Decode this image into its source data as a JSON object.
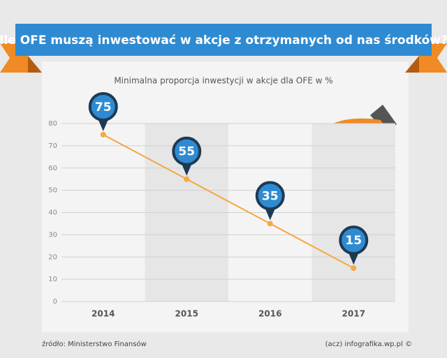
{
  "chart_data": {
    "type": "line",
    "title": "Ile OFE muszą inwestować w akcje z otrzymanych od nas środków?",
    "subtitle": "Minimalna proporcja inwestycji w akcje dla OFE w %",
    "categories": [
      "2014",
      "2015",
      "2016",
      "2017"
    ],
    "values": [
      75,
      55,
      35,
      15
    ],
    "color": "#f5a843",
    "ylim": [
      0,
      80
    ],
    "yticks": [
      0,
      10,
      20,
      30,
      40,
      50,
      60,
      70,
      80
    ],
    "grid": true,
    "source": "źródło: Ministerstwo Finansów",
    "credit": "(acz) infografika.wp.pl ©"
  }
}
